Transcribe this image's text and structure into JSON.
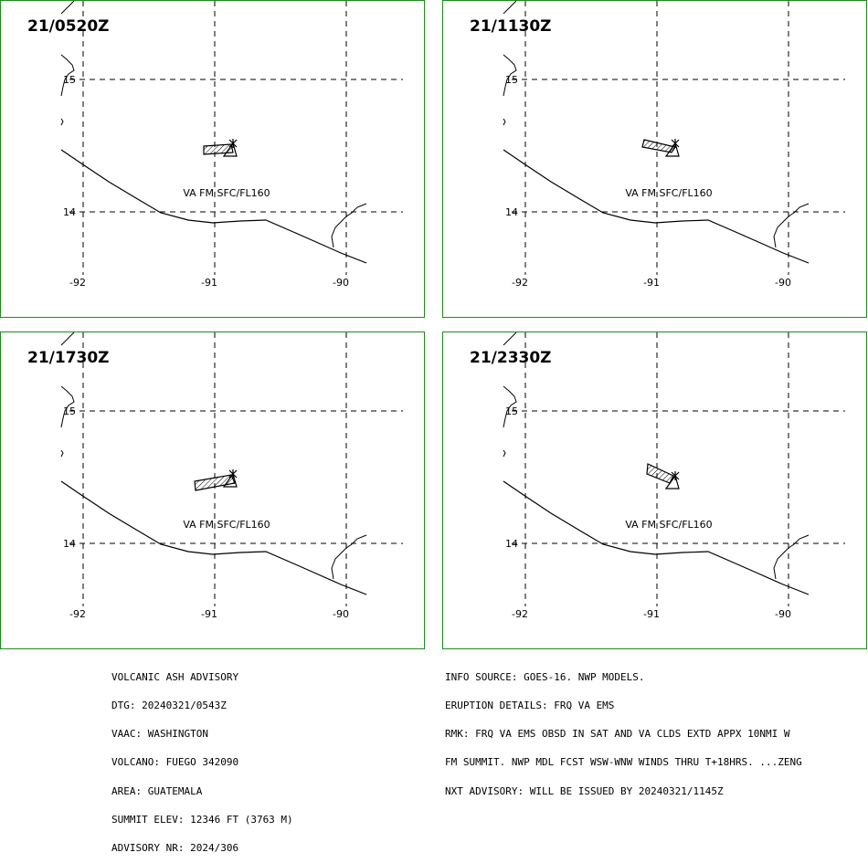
{
  "panels": [
    {
      "time": "21/0520Z",
      "va_label": "VA FM SFC/FL160",
      "ash_shape": "a"
    },
    {
      "time": "21/1130Z",
      "va_label": "VA FM SFC/FL160",
      "ash_shape": "b"
    },
    {
      "time": "21/1730Z",
      "va_label": "VA FM SFC/FL160",
      "ash_shape": "c"
    },
    {
      "time": "21/2330Z",
      "va_label": "VA FM SFC/FL160",
      "ash_shape": "d"
    }
  ],
  "grid": {
    "lat_labels": [
      "15",
      "14"
    ],
    "lon_labels": [
      "-92",
      "-91",
      "-90"
    ]
  },
  "advisory_left": [
    "VOLCANIC ASH ADVISORY",
    "DTG: 20240321/0543Z",
    "VAAC: WASHINGTON",
    "VOLCANO: FUEGO 342090",
    "AREA: GUATEMALA",
    "SUMMIT ELEV: 12346 FT (3763 M)",
    "ADVISORY NR: 2024/306"
  ],
  "advisory_right": [
    "INFO SOURCE: GOES-16. NWP MODELS.",
    "ERUPTION DETAILS: FRQ VA EMS",
    "RMK: FRQ VA EMS OBSD IN SAT AND VA CLDS EXTD APPX 10NMI W",
    "FM SUMMIT. NWP MDL FCST WSW-WNW WINDS THRU T+18HRS. ...ZENG",
    "NXT ADVISORY: WILL BE ISSUED BY 20240321/1145Z"
  ],
  "colors": {
    "frame": "#1f8a1f",
    "lines": "#000000"
  }
}
